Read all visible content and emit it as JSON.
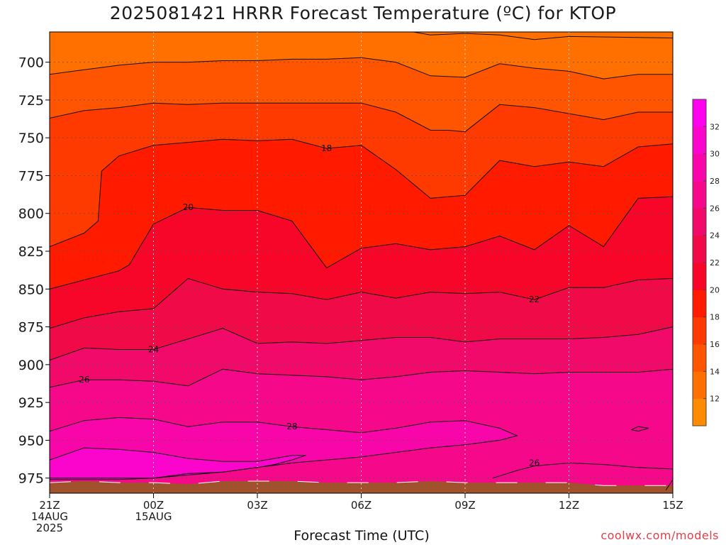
{
  "chart_data": {
    "type": "heatmap",
    "title": "2025081421 HRRR Forecast Temperature (ºC) for KTOP",
    "xlabel": "Forecast Time (UTC)",
    "ylabel": "",
    "credit": "coolwx.com/models",
    "x_ticks": [
      {
        "hour": 0,
        "lines": [
          "21Z",
          "14AUG",
          "2025"
        ]
      },
      {
        "hour": 3,
        "lines": [
          "00Z",
          "15AUG"
        ]
      },
      {
        "hour": 6,
        "lines": [
          "03Z"
        ]
      },
      {
        "hour": 9,
        "lines": [
          "06Z"
        ]
      },
      {
        "hour": 12,
        "lines": [
          "09Z"
        ]
      },
      {
        "hour": 15,
        "lines": [
          "12Z"
        ]
      },
      {
        "hour": 18,
        "lines": [
          "15Z"
        ]
      }
    ],
    "y_ticks": [
      700,
      725,
      750,
      775,
      800,
      825,
      850,
      875,
      900,
      925,
      950,
      975
    ],
    "xlim_hours": [
      0,
      18
    ],
    "ylim_hpa": [
      680,
      985
    ],
    "grid": true,
    "colorbar": {
      "levels": [
        10,
        12,
        14,
        16,
        18,
        20,
        22,
        24,
        26,
        28,
        30,
        32,
        34
      ],
      "tick_labels": [
        "12",
        "14",
        "16",
        "18",
        "20",
        "22",
        "24",
        "26",
        "28",
        "30",
        "32"
      ],
      "colors": [
        "#ff8c00",
        "#ff7000",
        "#ff5500",
        "#ff3a00",
        "#ff1a00",
        "#f8052a",
        "#f00a48",
        "#f20a6a",
        "#f5088a",
        "#f806aa",
        "#fb04cc",
        "#ff00ee"
      ]
    },
    "ground_color": "#a0522d",
    "isotherms": [
      {
        "value": 12,
        "label": "",
        "points": [
          [
            10.5,
            680
          ],
          [
            11,
            682
          ],
          [
            12,
            681
          ],
          [
            13,
            682
          ],
          [
            14,
            685
          ],
          [
            15,
            683
          ],
          [
            18,
            684
          ]
        ]
      },
      {
        "value": 14,
        "label": "",
        "points": [
          [
            0,
            708
          ],
          [
            1,
            705
          ],
          [
            2,
            702
          ],
          [
            3,
            700
          ],
          [
            4,
            700
          ],
          [
            5,
            699
          ],
          [
            6,
            699
          ],
          [
            7,
            698
          ],
          [
            8,
            698
          ],
          [
            9,
            697
          ],
          [
            10,
            700
          ],
          [
            11,
            709
          ],
          [
            12,
            710
          ],
          [
            13,
            701
          ],
          [
            14,
            704
          ],
          [
            15,
            706
          ],
          [
            16,
            711
          ],
          [
            17,
            708
          ],
          [
            18,
            708
          ]
        ]
      },
      {
        "value": 16,
        "label": "",
        "points": [
          [
            0,
            737
          ],
          [
            1,
            732
          ],
          [
            2,
            730
          ],
          [
            3,
            727
          ],
          [
            4,
            728
          ],
          [
            5,
            727
          ],
          [
            6,
            727
          ],
          [
            7,
            727
          ],
          [
            8,
            727
          ],
          [
            9,
            727
          ],
          [
            10,
            733
          ],
          [
            11,
            745
          ],
          [
            11.5,
            745
          ],
          [
            12,
            746
          ],
          [
            13,
            728
          ],
          [
            14,
            730
          ],
          [
            15,
            734
          ],
          [
            16,
            738
          ],
          [
            17,
            733
          ],
          [
            18,
            733
          ]
        ]
      },
      {
        "value": 18,
        "label": "18",
        "label_at": [
          8,
          757
        ],
        "points": [
          [
            0,
            822
          ],
          [
            1,
            813
          ],
          [
            1.4,
            805
          ],
          [
            1.5,
            772
          ],
          [
            2,
            762
          ],
          [
            3,
            755
          ],
          [
            4,
            753
          ],
          [
            5,
            751
          ],
          [
            6,
            752
          ],
          [
            7,
            751
          ],
          [
            8,
            757
          ],
          [
            9,
            755
          ],
          [
            10,
            771
          ],
          [
            11,
            790
          ],
          [
            12,
            788
          ],
          [
            13,
            765
          ],
          [
            14,
            769
          ],
          [
            15,
            766
          ],
          [
            16,
            769
          ],
          [
            17,
            756
          ],
          [
            18,
            754
          ]
        ]
      },
      {
        "value": 20,
        "label": "20",
        "label_at": [
          4,
          796
        ],
        "points": [
          [
            0,
            850
          ],
          [
            1,
            844
          ],
          [
            2,
            838
          ],
          [
            2.3,
            834
          ],
          [
            3,
            807
          ],
          [
            4,
            796
          ],
          [
            5,
            798
          ],
          [
            6,
            798
          ],
          [
            7,
            805
          ],
          [
            8,
            836
          ],
          [
            9,
            823
          ],
          [
            10,
            820
          ],
          [
            11,
            824
          ],
          [
            12,
            822
          ],
          [
            13,
            815
          ],
          [
            14,
            824
          ],
          [
            15,
            808
          ],
          [
            16,
            822
          ],
          [
            17,
            790
          ],
          [
            18,
            789
          ]
        ]
      },
      {
        "value": 22,
        "label": "22",
        "label_at": [
          14,
          857
        ],
        "points": [
          [
            0,
            876
          ],
          [
            1,
            869
          ],
          [
            2,
            865
          ],
          [
            3,
            863
          ],
          [
            4,
            843
          ],
          [
            5,
            850
          ],
          [
            6,
            852
          ],
          [
            7,
            853
          ],
          [
            8,
            857
          ],
          [
            9,
            852
          ],
          [
            10,
            856
          ],
          [
            11,
            852
          ],
          [
            12,
            853
          ],
          [
            13,
            852
          ],
          [
            14,
            857
          ],
          [
            15,
            849
          ],
          [
            16,
            849
          ],
          [
            17,
            844
          ],
          [
            18,
            843
          ]
        ]
      },
      {
        "value": 24,
        "label": "24",
        "label_at": [
          3,
          890
        ],
        "points": [
          [
            0,
            897
          ],
          [
            1,
            889
          ],
          [
            2,
            890
          ],
          [
            3,
            890
          ],
          [
            4,
            883
          ],
          [
            5,
            876
          ],
          [
            6,
            886
          ],
          [
            7,
            885
          ],
          [
            8,
            886
          ],
          [
            9,
            884
          ],
          [
            10,
            882
          ],
          [
            11,
            882
          ],
          [
            12,
            885
          ],
          [
            13,
            883
          ],
          [
            14,
            883
          ],
          [
            15,
            883
          ],
          [
            16,
            882
          ],
          [
            17,
            880
          ],
          [
            18,
            875
          ]
        ]
      },
      {
        "value": 26,
        "label": "26",
        "label_at": [
          1,
          910
        ],
        "points": [
          [
            0,
            915
          ],
          [
            1,
            910
          ],
          [
            2,
            910
          ],
          [
            3,
            911
          ],
          [
            4,
            914
          ],
          [
            5,
            903
          ],
          [
            6,
            906
          ],
          [
            7,
            907
          ],
          [
            8,
            908
          ],
          [
            9,
            910
          ],
          [
            10,
            908
          ],
          [
            11,
            905
          ],
          [
            12,
            904
          ],
          [
            13,
            905
          ],
          [
            14,
            906
          ],
          [
            15,
            905
          ],
          [
            16,
            905
          ],
          [
            17,
            905
          ],
          [
            18,
            903
          ]
        ]
      },
      {
        "value": 26,
        "label": "26",
        "label_at": [
          14,
          965
        ],
        "points": [
          [
            12.8,
            975
          ],
          [
            13.5,
            970
          ],
          [
            14,
            967
          ],
          [
            15,
            965
          ],
          [
            16,
            966
          ],
          [
            17,
            968
          ],
          [
            18,
            969
          ]
        ]
      },
      {
        "value": 28,
        "label": "28",
        "label_at": [
          7,
          941
        ],
        "points": [
          [
            0,
            944
          ],
          [
            1,
            937
          ],
          [
            2,
            935
          ],
          [
            3,
            936
          ],
          [
            4,
            941
          ],
          [
            5,
            938
          ],
          [
            6,
            938
          ],
          [
            7,
            941
          ],
          [
            8,
            943
          ],
          [
            9,
            945
          ],
          [
            10,
            942
          ],
          [
            11,
            938
          ],
          [
            12,
            937
          ],
          [
            13,
            942
          ],
          [
            13.5,
            947
          ],
          [
            13,
            950
          ],
          [
            12,
            953
          ],
          [
            11,
            955
          ],
          [
            10,
            958
          ],
          [
            9,
            961
          ],
          [
            8,
            963
          ],
          [
            7,
            965
          ],
          [
            6,
            968
          ],
          [
            5,
            971
          ],
          [
            4,
            972
          ],
          [
            3,
            975
          ],
          [
            2,
            975
          ],
          [
            1,
            975
          ],
          [
            0,
            975
          ]
        ]
      },
      {
        "value": 30,
        "label": "",
        "points": [
          [
            0,
            963
          ],
          [
            1,
            955
          ],
          [
            2,
            956
          ],
          [
            3,
            958
          ],
          [
            4,
            962
          ],
          [
            5,
            964
          ],
          [
            6,
            964
          ],
          [
            7,
            960
          ],
          [
            7.4,
            960
          ],
          [
            7,
            963
          ],
          [
            6.5,
            966
          ],
          [
            6,
            968
          ],
          [
            5,
            971
          ],
          [
            4,
            973
          ],
          [
            3,
            975
          ],
          [
            2,
            976
          ],
          [
            1,
            976
          ],
          [
            0,
            976
          ]
        ]
      },
      {
        "value": 26,
        "label": "",
        "points": [
          [
            16.8,
            943
          ],
          [
            17,
            941
          ],
          [
            17.3,
            942
          ],
          [
            17,
            944
          ],
          [
            16.8,
            943
          ]
        ]
      },
      {
        "value": 26,
        "label": "",
        "points": [
          [
            17.8,
            983
          ],
          [
            18,
            976
          ]
        ]
      }
    ],
    "ground_surface": [
      [
        0,
        978
      ],
      [
        1,
        977
      ],
      [
        2,
        978
      ],
      [
        3,
        978
      ],
      [
        4,
        979
      ],
      [
        5,
        977
      ],
      [
        6,
        977
      ],
      [
        7,
        977
      ],
      [
        8,
        978
      ],
      [
        9,
        978
      ],
      [
        10,
        978
      ],
      [
        11,
        977
      ],
      [
        12,
        978
      ],
      [
        13,
        978
      ],
      [
        14,
        978
      ],
      [
        15,
        978
      ],
      [
        16,
        980
      ],
      [
        17,
        980
      ],
      [
        18,
        980
      ]
    ]
  }
}
